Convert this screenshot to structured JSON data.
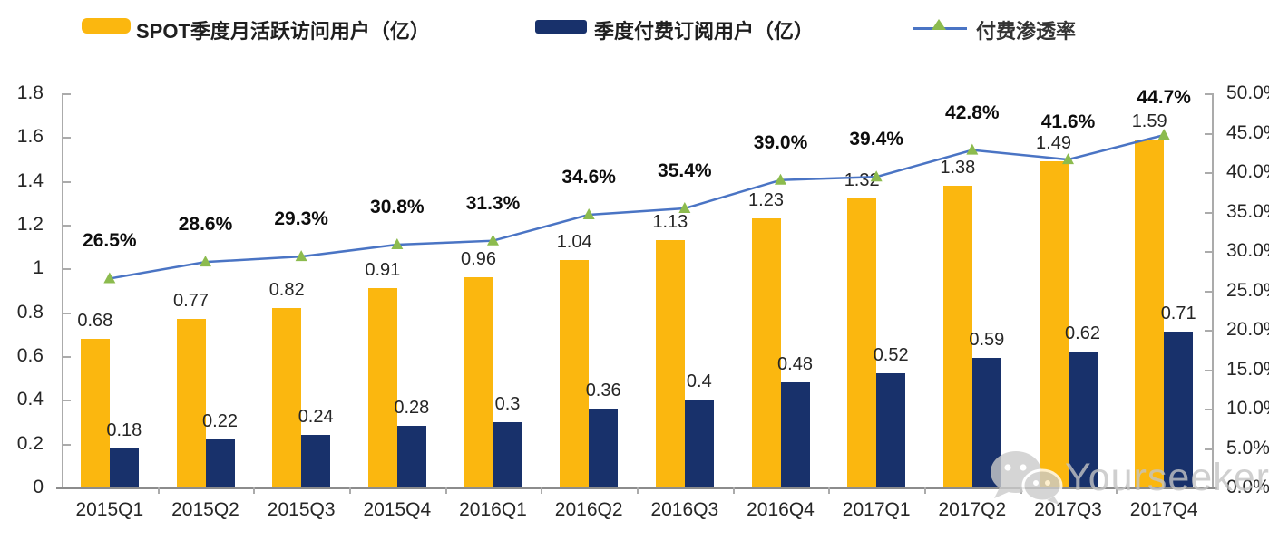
{
  "chart_data": {
    "type": "combo-bar-line",
    "categories": [
      "2015Q1",
      "2015Q2",
      "2015Q3",
      "2015Q4",
      "2016Q1",
      "2016Q2",
      "2016Q3",
      "2016Q4",
      "2017Q1",
      "2017Q2",
      "2017Q3",
      "2017Q4"
    ],
    "series": [
      {
        "name": "SPOT季度月活跃访问用户（亿）",
        "type": "bar",
        "axis": "left",
        "color": "#fbb70f",
        "values": [
          0.68,
          0.77,
          0.82,
          0.91,
          0.96,
          1.04,
          1.13,
          1.23,
          1.32,
          1.38,
          1.49,
          1.59
        ],
        "labels": [
          "0.68",
          "0.77",
          "0.82",
          "0.91",
          "0.96",
          "1.04",
          "1.13",
          "1.23",
          "1.32",
          "1.38",
          "1.49",
          "1.59"
        ]
      },
      {
        "name": "季度付费订阅用户（亿）",
        "type": "bar",
        "axis": "left",
        "color": "#18316b",
        "values": [
          0.18,
          0.22,
          0.24,
          0.28,
          0.3,
          0.36,
          0.4,
          0.48,
          0.52,
          0.59,
          0.62,
          0.71
        ],
        "labels": [
          "0.18",
          "0.22",
          "0.24",
          "0.28",
          "0.3",
          "0.36",
          "0.4",
          "0.48",
          "0.52",
          "0.59",
          "0.62",
          "0.71"
        ]
      },
      {
        "name": "付费渗透率",
        "type": "line",
        "axis": "right",
        "color": "#4a74c4",
        "marker": "triangle",
        "marker_color": "#8cbb4e",
        "values": [
          26.5,
          28.6,
          29.3,
          30.8,
          31.3,
          34.6,
          35.4,
          39.0,
          39.4,
          42.8,
          41.6,
          44.7
        ],
        "labels": [
          "26.5%",
          "28.6%",
          "29.3%",
          "30.8%",
          "31.3%",
          "34.6%",
          "35.4%",
          "39.0%",
          "39.4%",
          "42.8%",
          "41.6%",
          "44.7%"
        ]
      }
    ],
    "left_axis": {
      "min": 0,
      "max": 1.8,
      "ticks": [
        "1.8",
        "1.6",
        "1.4",
        "1.2",
        "1",
        "0.8",
        "0.6",
        "0.4",
        "0.2",
        "0"
      ]
    },
    "right_axis": {
      "min": 0,
      "max": 50,
      "ticks": [
        "50.0%",
        "45.0%",
        "40.0%",
        "35.0%",
        "30.0%",
        "25.0%",
        "20.0%",
        "15.0%",
        "10.0%",
        "5.0%",
        "0.0%"
      ]
    },
    "grid": false,
    "legend_position": "top",
    "title": ""
  },
  "watermark": {
    "text": "Yourseeker",
    "icon": "wechat-icon"
  }
}
